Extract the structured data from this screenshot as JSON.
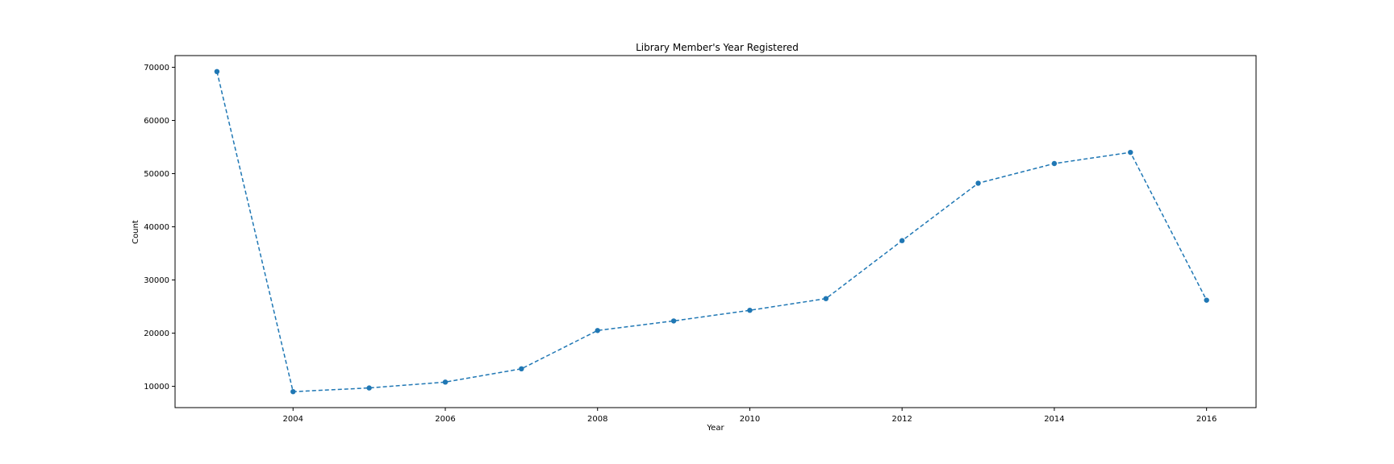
{
  "chart_data": {
    "type": "line",
    "title": "Library Member's Year Registered",
    "xlabel": "Year",
    "ylabel": "Count",
    "x": [
      2003,
      2004,
      2005,
      2006,
      2007,
      2008,
      2009,
      2010,
      2011,
      2012,
      2013,
      2014,
      2015,
      2016
    ],
    "series": [
      {
        "values": [
          69200,
          9000,
          9700,
          10800,
          13300,
          20500,
          22300,
          24300,
          26500,
          37400,
          48200,
          51900,
          54000,
          26200
        ]
      }
    ],
    "xlim": [
      2002.45,
      2016.65
    ],
    "ylim": [
      6000,
      72200
    ],
    "xticks": [
      2004,
      2006,
      2008,
      2010,
      2012,
      2014,
      2016
    ],
    "xtick_labels": [
      "2004",
      "2006",
      "2008",
      "2010",
      "2012",
      "2014",
      "2016"
    ],
    "yticks": [
      10000,
      20000,
      30000,
      40000,
      50000,
      60000,
      70000
    ],
    "ytick_labels": [
      "10000",
      "20000",
      "30000",
      "40000",
      "50000",
      "60000",
      "70000"
    ],
    "line_style": "dashed",
    "marker": "circle",
    "grid": false,
    "color": "#1f77b4"
  }
}
